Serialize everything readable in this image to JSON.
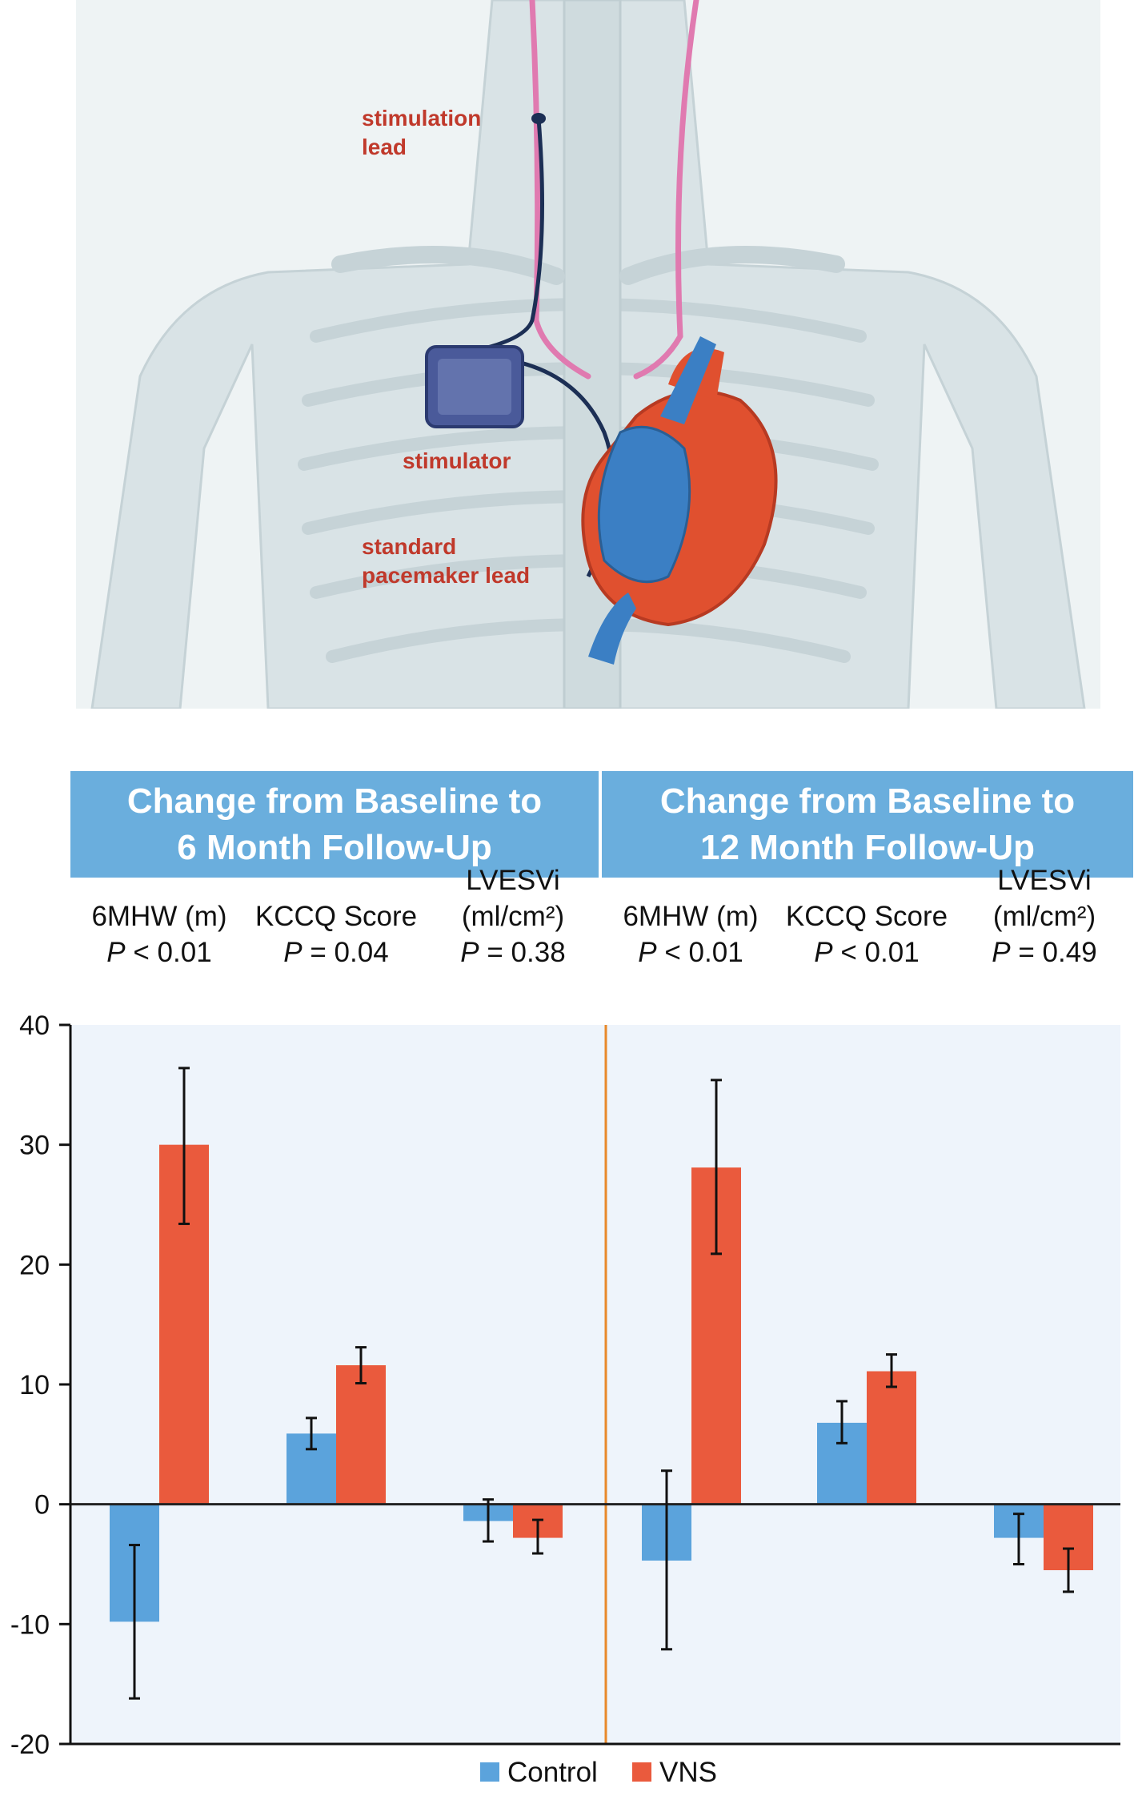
{
  "illustration": {
    "labels": {
      "stimulation_lead": "stimulation\nlead",
      "stimulator": "stimulator",
      "pacemaker_lead": "standard\npacemaker lead"
    },
    "colors": {
      "label": "#c0392b",
      "heart": "#e0502f",
      "vessels": "#3b7fc4",
      "device": "#4a5a9a",
      "nerve": "#e07ab0"
    }
  },
  "headers": [
    "Change from Baseline to\n6 Month Follow-Up",
    "Change from Baseline to\n12 Month Follow-Up"
  ],
  "metrics": [
    {
      "name": "6MHW (m)",
      "p": "< 0.01"
    },
    {
      "name": "KCCQ Score",
      "p": "= 0.04"
    },
    {
      "name": "LVESVi\n(ml/cm²)",
      "p": "= 0.38"
    },
    {
      "name": "6MHW (m)",
      "p": "< 0.01"
    },
    {
      "name": "KCCQ Score",
      "p": "< 0.01"
    },
    {
      "name": "LVESVi\n(ml/cm²)",
      "p": "= 0.49"
    }
  ],
  "p_symbol": "P",
  "chart_data": {
    "type": "bar",
    "ylim": [
      -20,
      40
    ],
    "yticks": [
      -20,
      -10,
      0,
      10,
      20,
      30,
      40
    ],
    "groups": 6,
    "series": [
      {
        "name": "Control",
        "color": "#5ba3dc",
        "values": [
          -9.8,
          5.9,
          -1.4,
          -4.7,
          6.8,
          -2.8
        ],
        "error_low": [
          -16.2,
          4.6,
          -3.1,
          -12.1,
          5.1,
          -5.0
        ],
        "error_high": [
          -3.4,
          7.2,
          0.4,
          2.8,
          8.6,
          -0.8
        ]
      },
      {
        "name": "VNS",
        "color": "#ea5a3d",
        "values": [
          30.0,
          11.6,
          -2.8,
          28.1,
          11.1,
          -5.5
        ],
        "error_low": [
          23.4,
          10.1,
          -4.1,
          20.9,
          9.8,
          -7.3
        ],
        "error_high": [
          36.4,
          13.1,
          -1.3,
          35.4,
          12.5,
          -3.7
        ]
      }
    ],
    "divider_color": "#e8892a",
    "plot_background": "#eef4fb",
    "legend_position": "bottom"
  }
}
